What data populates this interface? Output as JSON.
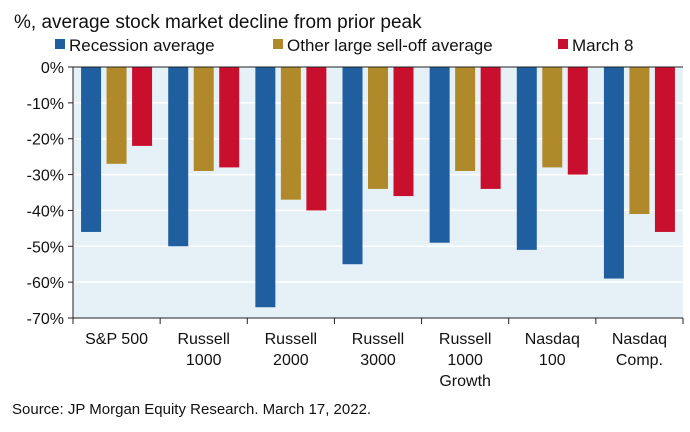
{
  "chart_data": {
    "type": "bar",
    "title": "%, average stock market decline from prior peak",
    "categories": [
      [
        "S&P 500"
      ],
      [
        "Russell",
        "1000"
      ],
      [
        "Russell",
        "2000"
      ],
      [
        "Russell",
        "3000"
      ],
      [
        "Russell",
        "1000",
        "Growth"
      ],
      [
        "Nasdaq",
        "100"
      ],
      [
        "Nasdaq",
        "Comp."
      ]
    ],
    "series": [
      {
        "name": "Recession average",
        "color": "#1f5fa0",
        "values": [
          -46,
          -50,
          -67,
          -55,
          -49,
          -51,
          -59
        ]
      },
      {
        "name": "Other large sell-off average",
        "color": "#b08a2a",
        "values": [
          -27,
          -29,
          -37,
          -34,
          -29,
          -28,
          -41
        ]
      },
      {
        "name": "March 8",
        "color": "#c8102e",
        "values": [
          -22,
          -28,
          -40,
          -36,
          -34,
          -30,
          -46
        ]
      }
    ],
    "yticks": [
      "0%",
      "-10%",
      "-20%",
      "-30%",
      "-40%",
      "-50%",
      "-60%",
      "-70%"
    ],
    "ylim": [
      -70,
      0
    ],
    "legend_position": "top",
    "plot_background": "#e6f0f7",
    "source": "Source: JP Morgan Equity Research. March 17, 2022."
  }
}
